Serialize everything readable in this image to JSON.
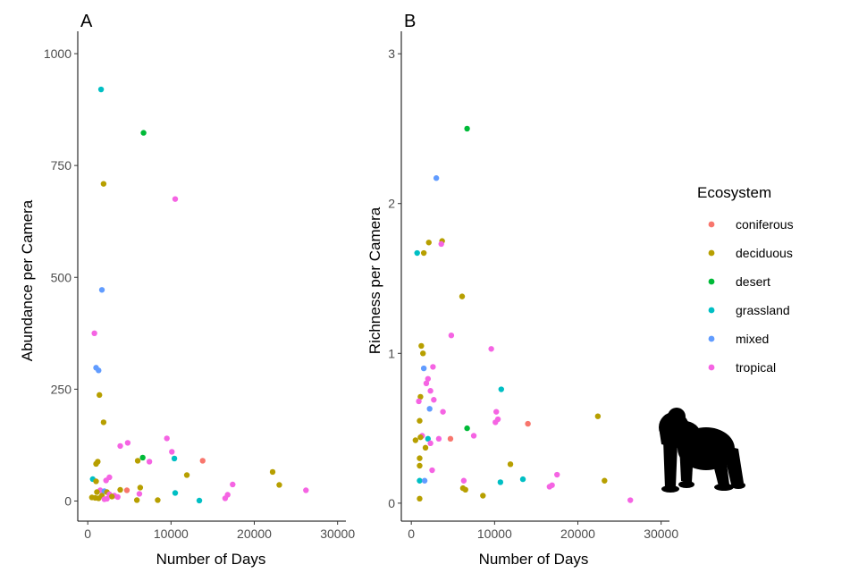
{
  "legend": {
    "title": "Ecosystem",
    "entries": [
      {
        "name": "coniferous",
        "color": "#F8766D"
      },
      {
        "name": "deciduous",
        "color": "#B79F00"
      },
      {
        "name": "desert",
        "color": "#00BA38"
      },
      {
        "name": "grassland",
        "color": "#00BFC4"
      },
      {
        "name": "mixed",
        "color": "#619CFF"
      },
      {
        "name": "tropical",
        "color": "#F564E3"
      }
    ]
  },
  "icon": "gorilla-silhouette-icon",
  "chart_data": [
    {
      "type": "scatter",
      "panel": "A",
      "xlabel": "Number of Days",
      "ylabel": "Abundance per Camera",
      "xlim": [
        -1200,
        31000
      ],
      "ylim": [
        -45,
        1050
      ],
      "xticks": [
        0,
        10000,
        20000,
        30000
      ],
      "xtick_labels": [
        "0",
        "10000",
        "20000",
        "30000"
      ],
      "yticks": [
        0,
        250,
        500,
        750,
        1000
      ],
      "ytick_labels": [
        "0",
        "250",
        "500",
        "750",
        "1000"
      ],
      "grid": false,
      "points": [
        {
          "x": 1600,
          "y": 920,
          "group": "grassland"
        },
        {
          "x": 6700,
          "y": 823,
          "group": "desert"
        },
        {
          "x": 1900,
          "y": 709,
          "group": "deciduous"
        },
        {
          "x": 10500,
          "y": 675,
          "group": "tropical"
        },
        {
          "x": 1700,
          "y": 472,
          "group": "mixed"
        },
        {
          "x": 800,
          "y": 375,
          "group": "tropical"
        },
        {
          "x": 1000,
          "y": 298,
          "group": "mixed"
        },
        {
          "x": 1300,
          "y": 292,
          "group": "mixed"
        },
        {
          "x": 1400,
          "y": 237,
          "group": "deciduous"
        },
        {
          "x": 1900,
          "y": 176,
          "group": "deciduous"
        },
        {
          "x": 9500,
          "y": 140,
          "group": "tropical"
        },
        {
          "x": 4800,
          "y": 130,
          "group": "tropical"
        },
        {
          "x": 3900,
          "y": 123,
          "group": "tropical"
        },
        {
          "x": 10100,
          "y": 110,
          "group": "tropical"
        },
        {
          "x": 6600,
          "y": 97,
          "group": "desert"
        },
        {
          "x": 10400,
          "y": 95,
          "group": "grassland"
        },
        {
          "x": 13800,
          "y": 90,
          "group": "coniferous"
        },
        {
          "x": 6000,
          "y": 90,
          "group": "deciduous"
        },
        {
          "x": 1200,
          "y": 88,
          "group": "deciduous"
        },
        {
          "x": 7400,
          "y": 88,
          "group": "tropical"
        },
        {
          "x": 1000,
          "y": 83,
          "group": "deciduous"
        },
        {
          "x": 22200,
          "y": 65,
          "group": "deciduous"
        },
        {
          "x": 11900,
          "y": 58,
          "group": "deciduous"
        },
        {
          "x": 2600,
          "y": 53,
          "group": "tropical"
        },
        {
          "x": 600,
          "y": 49,
          "group": "grassland"
        },
        {
          "x": 2200,
          "y": 46,
          "group": "tropical"
        },
        {
          "x": 1000,
          "y": 44,
          "group": "deciduous"
        },
        {
          "x": 17400,
          "y": 37,
          "group": "tropical"
        },
        {
          "x": 23000,
          "y": 36,
          "group": "deciduous"
        },
        {
          "x": 6300,
          "y": 30,
          "group": "deciduous"
        },
        {
          "x": 3900,
          "y": 25,
          "group": "deciduous"
        },
        {
          "x": 4700,
          "y": 24,
          "group": "coniferous"
        },
        {
          "x": 26200,
          "y": 24,
          "group": "tropical"
        },
        {
          "x": 1500,
          "y": 24,
          "group": "tropical"
        },
        {
          "x": 2000,
          "y": 22,
          "group": "mixed"
        },
        {
          "x": 2300,
          "y": 20,
          "group": "deciduous"
        },
        {
          "x": 1100,
          "y": 20,
          "group": "deciduous"
        },
        {
          "x": 10500,
          "y": 18,
          "group": "grassland"
        },
        {
          "x": 6200,
          "y": 16,
          "group": "tropical"
        },
        {
          "x": 2600,
          "y": 15,
          "group": "tropical"
        },
        {
          "x": 16800,
          "y": 14,
          "group": "tropical"
        },
        {
          "x": 3200,
          "y": 12,
          "group": "tropical"
        },
        {
          "x": 1700,
          "y": 12,
          "group": "deciduous"
        },
        {
          "x": 2900,
          "y": 10,
          "group": "deciduous"
        },
        {
          "x": 3600,
          "y": 9,
          "group": "tropical"
        },
        {
          "x": 500,
          "y": 8,
          "group": "deciduous"
        },
        {
          "x": 900,
          "y": 7,
          "group": "deciduous"
        },
        {
          "x": 16500,
          "y": 6,
          "group": "tropical"
        },
        {
          "x": 1300,
          "y": 6,
          "group": "deciduous"
        },
        {
          "x": 2300,
          "y": 5,
          "group": "tropical"
        },
        {
          "x": 2000,
          "y": 4,
          "group": "tropical"
        },
        {
          "x": 8400,
          "y": 2,
          "group": "deciduous"
        },
        {
          "x": 5900,
          "y": 2,
          "group": "deciduous"
        },
        {
          "x": 13400,
          "y": 1,
          "group": "grassland"
        }
      ]
    },
    {
      "type": "scatter",
      "panel": "B",
      "xlabel": "Number of Days",
      "ylabel": "Richness per Camera",
      "xlim": [
        -1200,
        31000
      ],
      "ylim": [
        -0.12,
        3.15
      ],
      "xticks": [
        0,
        10000,
        20000,
        30000
      ],
      "xtick_labels": [
        "0",
        "10000",
        "20000",
        "30000"
      ],
      "yticks": [
        0,
        1,
        2,
        3
      ],
      "ytick_labels": [
        "0",
        "1",
        "2",
        "3"
      ],
      "grid": false,
      "points": [
        {
          "x": 6700,
          "y": 2.5,
          "group": "desert"
        },
        {
          "x": 3000,
          "y": 2.17,
          "group": "mixed"
        },
        {
          "x": 3700,
          "y": 1.75,
          "group": "deciduous"
        },
        {
          "x": 2100,
          "y": 1.74,
          "group": "deciduous"
        },
        {
          "x": 3600,
          "y": 1.73,
          "group": "tropical"
        },
        {
          "x": 1500,
          "y": 1.67,
          "group": "deciduous"
        },
        {
          "x": 700,
          "y": 1.67,
          "group": "grassland"
        },
        {
          "x": 6100,
          "y": 1.38,
          "group": "deciduous"
        },
        {
          "x": 4800,
          "y": 1.12,
          "group": "tropical"
        },
        {
          "x": 1200,
          "y": 1.05,
          "group": "deciduous"
        },
        {
          "x": 9600,
          "y": 1.03,
          "group": "tropical"
        },
        {
          "x": 1400,
          "y": 1.0,
          "group": "deciduous"
        },
        {
          "x": 2600,
          "y": 0.91,
          "group": "tropical"
        },
        {
          "x": 1500,
          "y": 0.9,
          "group": "mixed"
        },
        {
          "x": 2000,
          "y": 0.83,
          "group": "tropical"
        },
        {
          "x": 1800,
          "y": 0.8,
          "group": "tropical"
        },
        {
          "x": 10800,
          "y": 0.76,
          "group": "grassland"
        },
        {
          "x": 2300,
          "y": 0.75,
          "group": "tropical"
        },
        {
          "x": 1100,
          "y": 0.71,
          "group": "deciduous"
        },
        {
          "x": 2700,
          "y": 0.69,
          "group": "tropical"
        },
        {
          "x": 900,
          "y": 0.68,
          "group": "tropical"
        },
        {
          "x": 2200,
          "y": 0.63,
          "group": "mixed"
        },
        {
          "x": 10200,
          "y": 0.61,
          "group": "tropical"
        },
        {
          "x": 3800,
          "y": 0.61,
          "group": "tropical"
        },
        {
          "x": 22400,
          "y": 0.58,
          "group": "deciduous"
        },
        {
          "x": 10400,
          "y": 0.56,
          "group": "tropical"
        },
        {
          "x": 1000,
          "y": 0.55,
          "group": "deciduous"
        },
        {
          "x": 10100,
          "y": 0.54,
          "group": "tropical"
        },
        {
          "x": 14000,
          "y": 0.53,
          "group": "coniferous"
        },
        {
          "x": 6700,
          "y": 0.5,
          "group": "desert"
        },
        {
          "x": 7500,
          "y": 0.45,
          "group": "tropical"
        },
        {
          "x": 1300,
          "y": 0.45,
          "group": "tropical"
        },
        {
          "x": 1100,
          "y": 0.44,
          "group": "deciduous"
        },
        {
          "x": 4700,
          "y": 0.43,
          "group": "coniferous"
        },
        {
          "x": 2000,
          "y": 0.43,
          "group": "grassland"
        },
        {
          "x": 3300,
          "y": 0.43,
          "group": "tropical"
        },
        {
          "x": 500,
          "y": 0.42,
          "group": "deciduous"
        },
        {
          "x": 2300,
          "y": 0.4,
          "group": "tropical"
        },
        {
          "x": 1700,
          "y": 0.37,
          "group": "deciduous"
        },
        {
          "x": 1000,
          "y": 0.3,
          "group": "deciduous"
        },
        {
          "x": 11900,
          "y": 0.26,
          "group": "deciduous"
        },
        {
          "x": 1000,
          "y": 0.25,
          "group": "deciduous"
        },
        {
          "x": 2500,
          "y": 0.22,
          "group": "tropical"
        },
        {
          "x": 17500,
          "y": 0.19,
          "group": "tropical"
        },
        {
          "x": 13400,
          "y": 0.16,
          "group": "grassland"
        },
        {
          "x": 23200,
          "y": 0.15,
          "group": "deciduous"
        },
        {
          "x": 1000,
          "y": 0.15,
          "group": "grassland"
        },
        {
          "x": 6300,
          "y": 0.15,
          "group": "tropical"
        },
        {
          "x": 1600,
          "y": 0.15,
          "group": "mixed"
        },
        {
          "x": 10700,
          "y": 0.14,
          "group": "grassland"
        },
        {
          "x": 16900,
          "y": 0.12,
          "group": "tropical"
        },
        {
          "x": 16600,
          "y": 0.11,
          "group": "tropical"
        },
        {
          "x": 6200,
          "y": 0.1,
          "group": "deciduous"
        },
        {
          "x": 6500,
          "y": 0.09,
          "group": "deciduous"
        },
        {
          "x": 8600,
          "y": 0.05,
          "group": "deciduous"
        },
        {
          "x": 1000,
          "y": 0.03,
          "group": "deciduous"
        },
        {
          "x": 26300,
          "y": 0.02,
          "group": "tropical"
        }
      ]
    }
  ]
}
